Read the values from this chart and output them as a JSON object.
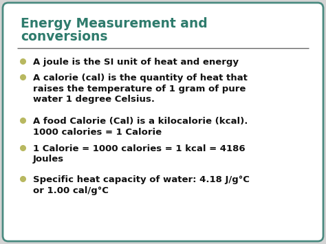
{
  "title_line1": "Energy Measurement and",
  "title_line2": "conversions",
  "title_color": "#2E7B6C",
  "background_color": "#D4D4D4",
  "card_color": "#FFFFFF",
  "border_color": "#4A8A80",
  "bullet_color": "#B8B860",
  "text_color": "#111111",
  "separator_color": "#666666",
  "bullet_points": [
    "A joule is the SI unit of heat and energy",
    "A calorie (cal) is the quantity of heat that\nraises the temperature of 1 gram of pure\nwater 1 degree Celsius.",
    "A food Calorie (Cal) is a kilocalorie (kcal).\n1000 calories = 1 Calorie",
    "1 Calorie = 1000 calories = 1 kcal = 4186\nJoules",
    "Specific heat capacity of water: 4.18 J/g°C\nor 1.00 cal/g°C"
  ],
  "title_fontsize": 13.5,
  "bullet_fontsize": 9.5,
  "fig_width": 4.74,
  "fig_height": 3.55,
  "dpi": 100
}
